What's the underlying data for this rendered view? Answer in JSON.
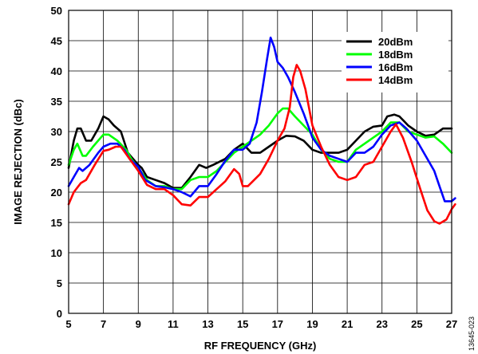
{
  "chart_data": {
    "type": "line",
    "title": "",
    "xlabel": "RF FREQUENCY (GHz)",
    "ylabel": "IMAGE REJECTION (dBc)",
    "xlim": [
      5,
      27
    ],
    "ylim": [
      0,
      50
    ],
    "xticks": [
      5,
      7,
      9,
      11,
      13,
      15,
      17,
      19,
      21,
      23,
      25,
      27
    ],
    "yticks": [
      0,
      5,
      10,
      15,
      20,
      25,
      30,
      35,
      40,
      45,
      50
    ],
    "grid": true,
    "legend_position": "top-right",
    "series": [
      {
        "name": "20dBm",
        "color": "#000000",
        "points": [
          [
            5,
            24
          ],
          [
            5.3,
            28.5
          ],
          [
            5.5,
            30.5
          ],
          [
            5.7,
            30.5
          ],
          [
            6,
            28.5
          ],
          [
            6.3,
            28.5
          ],
          [
            6.7,
            30.5
          ],
          [
            7,
            32.5
          ],
          [
            7.3,
            32
          ],
          [
            7.6,
            31
          ],
          [
            8,
            30
          ],
          [
            8.4,
            26.5
          ],
          [
            8.7,
            25.5
          ],
          [
            9,
            24.5
          ],
          [
            9.2,
            24
          ],
          [
            9.5,
            22.5
          ],
          [
            10,
            22
          ],
          [
            10.5,
            21.5
          ],
          [
            11,
            20.7
          ],
          [
            11.5,
            20.7
          ],
          [
            12,
            22.5
          ],
          [
            12.5,
            24.5
          ],
          [
            12.9,
            24
          ],
          [
            13.3,
            24.5
          ],
          [
            14,
            25.5
          ],
          [
            14.5,
            27
          ],
          [
            15,
            28
          ],
          [
            15.5,
            26.5
          ],
          [
            16,
            26.5
          ],
          [
            16.5,
            27.5
          ],
          [
            17,
            28.5
          ],
          [
            17.5,
            29.3
          ],
          [
            18,
            29.2
          ],
          [
            18.5,
            28.5
          ],
          [
            19,
            27
          ],
          [
            19.5,
            26.5
          ],
          [
            20,
            26.5
          ],
          [
            20.5,
            26.5
          ],
          [
            21,
            27
          ],
          [
            21.5,
            28.5
          ],
          [
            22,
            30
          ],
          [
            22.5,
            30.8
          ],
          [
            23,
            31
          ],
          [
            23.3,
            32.5
          ],
          [
            23.7,
            32.8
          ],
          [
            24,
            32.5
          ],
          [
            24.5,
            31
          ],
          [
            25,
            30
          ],
          [
            25.5,
            29.3
          ],
          [
            26,
            29.5
          ],
          [
            26.5,
            30.5
          ],
          [
            27,
            30.5
          ]
        ]
      },
      {
        "name": "18dBm",
        "color": "#00ff00",
        "points": [
          [
            5,
            24.5
          ],
          [
            5.3,
            27
          ],
          [
            5.5,
            28
          ],
          [
            5.8,
            26
          ],
          [
            6,
            26
          ],
          [
            6.4,
            27.5
          ],
          [
            7,
            29.5
          ],
          [
            7.3,
            29.5
          ],
          [
            7.8,
            28.5
          ],
          [
            8.3,
            27
          ],
          [
            8.6,
            25.5
          ],
          [
            9,
            24
          ],
          [
            9.5,
            22
          ],
          [
            10,
            21
          ],
          [
            10.5,
            21
          ],
          [
            11,
            20.5
          ],
          [
            11.5,
            20.5
          ],
          [
            12,
            22
          ],
          [
            12.5,
            22.5
          ],
          [
            13,
            22.5
          ],
          [
            13.5,
            23.5
          ],
          [
            14,
            25
          ],
          [
            14.5,
            26.5
          ],
          [
            15,
            27.5
          ],
          [
            15.5,
            28.5
          ],
          [
            16,
            29.5
          ],
          [
            16.5,
            31
          ],
          [
            17,
            33
          ],
          [
            17.3,
            33.8
          ],
          [
            17.6,
            33.8
          ],
          [
            18,
            32.5
          ],
          [
            18.5,
            31
          ],
          [
            19,
            29.5
          ],
          [
            19.5,
            27
          ],
          [
            20,
            25.5
          ],
          [
            20.5,
            25
          ],
          [
            21,
            25
          ],
          [
            21.5,
            27
          ],
          [
            22,
            28
          ],
          [
            22.5,
            29
          ],
          [
            23,
            30
          ],
          [
            23.5,
            31.5
          ],
          [
            24,
            31.5
          ],
          [
            24.5,
            30
          ],
          [
            25,
            29.5
          ],
          [
            25.5,
            29
          ],
          [
            26,
            29.2
          ],
          [
            26.5,
            28
          ],
          [
            27,
            26.5
          ]
        ]
      },
      {
        "name": "16dBm",
        "color": "#0000ff",
        "points": [
          [
            5,
            21
          ],
          [
            5.3,
            22.5
          ],
          [
            5.6,
            24
          ],
          [
            5.8,
            23.5
          ],
          [
            6.2,
            24.5
          ],
          [
            6.7,
            26.5
          ],
          [
            7,
            27.5
          ],
          [
            7.4,
            28
          ],
          [
            7.8,
            28
          ],
          [
            8.2,
            27
          ],
          [
            8.5,
            25.5
          ],
          [
            9,
            24.2
          ],
          [
            9.4,
            22
          ],
          [
            10,
            21
          ],
          [
            10.5,
            20.8
          ],
          [
            11,
            20.5
          ],
          [
            11.5,
            20
          ],
          [
            12,
            19.3
          ],
          [
            12.5,
            21
          ],
          [
            13,
            21
          ],
          [
            13.5,
            23
          ],
          [
            14,
            25.2
          ],
          [
            14.5,
            27
          ],
          [
            15,
            27
          ],
          [
            15.4,
            28
          ],
          [
            15.8,
            31.5
          ],
          [
            16.1,
            36.5
          ],
          [
            16.4,
            42
          ],
          [
            16.6,
            45.5
          ],
          [
            16.8,
            44
          ],
          [
            17,
            41.5
          ],
          [
            17.3,
            40.5
          ],
          [
            17.6,
            39
          ],
          [
            18,
            36.5
          ],
          [
            18.5,
            33
          ],
          [
            19,
            29
          ],
          [
            19.5,
            27
          ],
          [
            20,
            26
          ],
          [
            20.5,
            25.5
          ],
          [
            21,
            25
          ],
          [
            21.5,
            26.5
          ],
          [
            22,
            26.5
          ],
          [
            22.5,
            27.5
          ],
          [
            23,
            29.5
          ],
          [
            23.5,
            31
          ],
          [
            24,
            31.5
          ],
          [
            24.4,
            30.5
          ],
          [
            25,
            28.5
          ],
          [
            25.5,
            26
          ],
          [
            26,
            23.5
          ],
          [
            26.3,
            21
          ],
          [
            26.6,
            18.5
          ],
          [
            27,
            18.5
          ],
          [
            27.2,
            19
          ]
        ]
      },
      {
        "name": "14dBm",
        "color": "#ff0000",
        "points": [
          [
            5,
            18
          ],
          [
            5.3,
            20
          ],
          [
            5.7,
            21.5
          ],
          [
            6,
            22
          ],
          [
            6.5,
            24.5
          ],
          [
            7,
            26.8
          ],
          [
            7.3,
            27
          ],
          [
            7.7,
            27.5
          ],
          [
            8,
            27.5
          ],
          [
            8.5,
            25.5
          ],
          [
            9,
            23.5
          ],
          [
            9.5,
            21.2
          ],
          [
            10,
            20.5
          ],
          [
            10.5,
            20.5
          ],
          [
            11,
            19.5
          ],
          [
            11.5,
            18
          ],
          [
            12,
            17.8
          ],
          [
            12.5,
            19.2
          ],
          [
            13,
            19.2
          ],
          [
            13.5,
            20.5
          ],
          [
            14,
            21.8
          ],
          [
            14.5,
            23.8
          ],
          [
            14.8,
            23
          ],
          [
            15,
            21
          ],
          [
            15.3,
            21
          ],
          [
            16,
            23
          ],
          [
            16.5,
            25.5
          ],
          [
            17,
            28.5
          ],
          [
            17.4,
            30.5
          ],
          [
            17.7,
            34
          ],
          [
            17.9,
            39
          ],
          [
            18.1,
            41
          ],
          [
            18.3,
            40
          ],
          [
            18.6,
            37
          ],
          [
            19,
            31
          ],
          [
            19.5,
            27.5
          ],
          [
            20,
            24.5
          ],
          [
            20.5,
            22.5
          ],
          [
            21,
            22
          ],
          [
            21.5,
            22.5
          ],
          [
            22,
            24.5
          ],
          [
            22.5,
            25
          ],
          [
            23,
            27.5
          ],
          [
            23.5,
            30
          ],
          [
            23.8,
            31.2
          ],
          [
            24.2,
            29
          ],
          [
            24.7,
            25
          ],
          [
            25.2,
            20.5
          ],
          [
            25.6,
            17
          ],
          [
            26,
            15.2
          ],
          [
            26.3,
            14.8
          ],
          [
            26.7,
            15.5
          ],
          [
            27,
            17.2
          ],
          [
            27.2,
            18
          ]
        ]
      }
    ]
  },
  "figure_id": "13645-023"
}
